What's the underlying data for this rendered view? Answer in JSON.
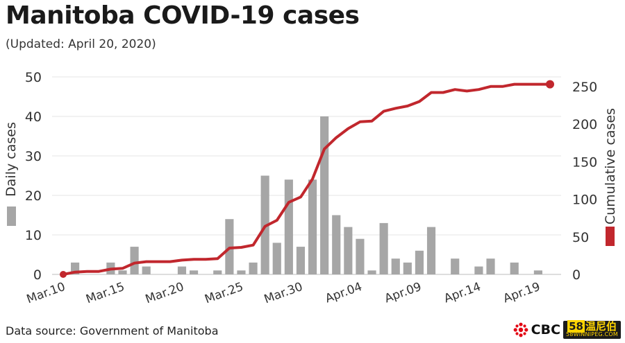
{
  "header": {
    "title": "Manitoba COVID-19 cases",
    "subtitle": "(Updated: April 20, 2020)"
  },
  "footer": {
    "source": "Data source: Government of Manitoba",
    "logos": {
      "cbc": "CBC",
      "wp_top_num": "58",
      "wp_top_text": "温尼伯",
      "wp_bottom": "58WINNIPEG.COM"
    }
  },
  "colors": {
    "bar": "#a6a6a6",
    "line": "#c1272d",
    "grid": "#e6e6e6",
    "text": "#333333"
  },
  "chart_data": {
    "type": "bar+line",
    "x_tick_labels": [
      "Mar.10",
      "Mar.15",
      "Mar.20",
      "Mar.25",
      "Mar.30",
      "Apr.04",
      "Apr.09",
      "Apr.14",
      "Apr.19"
    ],
    "dates": [
      "Mar.10",
      "Mar.11",
      "Mar.12",
      "Mar.13",
      "Mar.14",
      "Mar.15",
      "Mar.16",
      "Mar.17",
      "Mar.18",
      "Mar.19",
      "Mar.20",
      "Mar.21",
      "Mar.22",
      "Mar.23",
      "Mar.24",
      "Mar.25",
      "Mar.26",
      "Mar.27",
      "Mar.28",
      "Mar.29",
      "Mar.30",
      "Mar.31",
      "Apr.01",
      "Apr.02",
      "Apr.03",
      "Apr.04",
      "Apr.05",
      "Apr.06",
      "Apr.07",
      "Apr.08",
      "Apr.09",
      "Apr.10",
      "Apr.11",
      "Apr.12",
      "Apr.13",
      "Apr.14",
      "Apr.15",
      "Apr.16",
      "Apr.17",
      "Apr.18",
      "Apr.19",
      "Apr.20"
    ],
    "series": [
      {
        "name": "Daily cases",
        "axis": "left",
        "values": [
          0,
          3,
          0,
          0,
          3,
          1,
          7,
          2,
          0,
          0,
          2,
          1,
          0,
          1,
          14,
          1,
          3,
          25,
          8,
          24,
          7,
          24,
          40,
          15,
          12,
          9,
          1,
          13,
          4,
          3,
          6,
          12,
          0,
          4,
          0,
          2,
          4,
          0,
          3,
          0,
          1,
          0
        ]
      },
      {
        "name": "Cumulative cases",
        "axis": "right",
        "values": [
          0,
          3,
          4,
          4,
          7,
          8,
          15,
          17,
          17,
          17,
          19,
          20,
          20,
          21,
          35,
          36,
          39,
          64,
          72,
          96,
          103,
          127,
          167,
          182,
          194,
          203,
          204,
          217,
          221,
          224,
          230,
          242,
          242,
          246,
          244,
          246,
          250,
          250,
          253,
          253,
          253,
          253
        ]
      }
    ],
    "left_axis": {
      "label": "Daily cases",
      "ticks": [
        0,
        10,
        20,
        30,
        40,
        50
      ],
      "range": [
        0,
        50
      ]
    },
    "right_axis": {
      "label": "Cumulative cases",
      "ticks": [
        0,
        50,
        100,
        150,
        200,
        250
      ],
      "range": [
        0,
        260
      ]
    },
    "grid": true,
    "legend_placement": "axis-titles"
  }
}
